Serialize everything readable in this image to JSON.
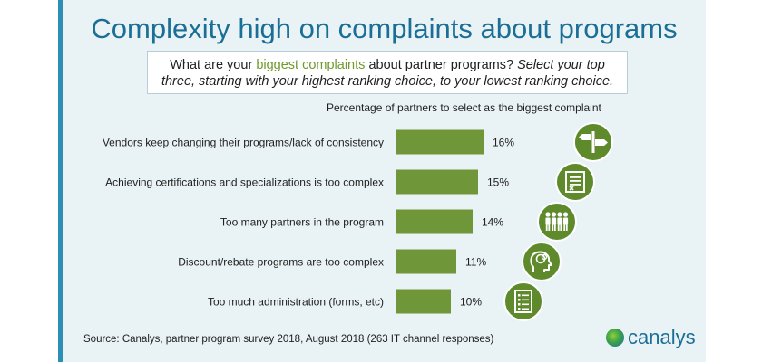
{
  "title": "Complexity high on complaints about programs",
  "question": {
    "lead": "What are your",
    "highlight": "biggest complaints",
    "mid": "about partner programs?",
    "italic": "Select your top three, starting with your highest ranking choice, to your lowest ranking choice."
  },
  "chart_data": {
    "type": "bar",
    "orientation": "horizontal",
    "title": "Percentage of partners to select as the biggest complaint",
    "categories": [
      "Vendors keep changing their programs/lack of consistency",
      "Achieving certifications and specializations is too complex",
      "Too many partners in the program",
      "Discount/rebate programs are too complex",
      "Too much administration (forms, etc)"
    ],
    "values": [
      16,
      15,
      14,
      11,
      10
    ],
    "value_labels": [
      "16%",
      "15%",
      "14%",
      "11%",
      "10%"
    ],
    "unit": "%",
    "xlim": [
      0,
      16
    ],
    "icons": [
      "signpost-icon",
      "certificate-icon",
      "people-group-icon",
      "brain-head-icon",
      "checklist-icon"
    ]
  },
  "colors": {
    "bar": "#70963a",
    "icon_circle": "#5e8a2c",
    "title": "#1b6f96",
    "accent_strip": "#2c8fb3"
  },
  "footer": {
    "source": "Source: Canalys, partner program survey 2018, August 2018 (263 IT channel responses)",
    "brand": "canalys"
  }
}
